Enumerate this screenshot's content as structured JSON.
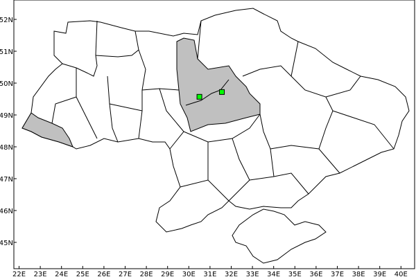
{
  "map": {
    "type": "region map",
    "lon_range": [
      22,
      40
    ],
    "lat_range": [
      45,
      52
    ],
    "lon_ticks": [
      "22E",
      "23E",
      "24E",
      "25E",
      "26E",
      "27E",
      "28E",
      "29E",
      "30E",
      "31E",
      "32E",
      "33E",
      "34E",
      "35E",
      "36E",
      "37E",
      "38E",
      "39E",
      "40E"
    ],
    "lat_ticks": [
      "45N",
      "46N",
      "47N",
      "48N",
      "49N",
      "50N",
      "51N",
      "52N"
    ],
    "highlight_color": "#c0c0c0",
    "marker_color": "#00ff00",
    "highlighted_regions": [
      "Kyiv oblast",
      "Zakarpattia oblast"
    ],
    "markers": [
      {
        "lon": 30.5,
        "lat": 49.57
      },
      {
        "lon": 31.56,
        "lat": 49.72
      }
    ]
  }
}
